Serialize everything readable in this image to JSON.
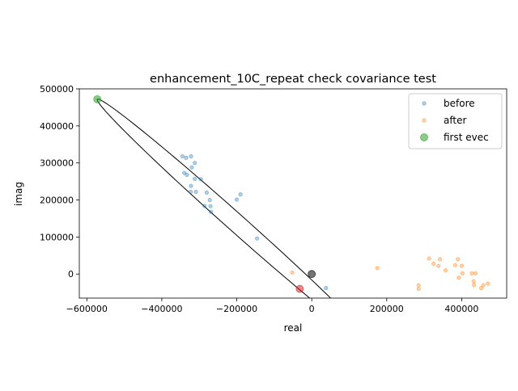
{
  "chart_data": {
    "type": "scatter",
    "title": "enhancement_10C_repeat check covariance test",
    "xlabel": "real",
    "ylabel": "imag",
    "xlim": [
      -620000,
      520000
    ],
    "ylim": [
      -65000,
      500000
    ],
    "xticks": [
      -600000,
      -400000,
      -200000,
      0,
      200000,
      400000
    ],
    "xtick_labels": [
      "−600000",
      "−400000",
      "−200000",
      "0",
      "200000",
      "400000"
    ],
    "yticks": [
      0,
      100000,
      200000,
      300000,
      400000,
      500000
    ],
    "ytick_labels": [
      "0",
      "100000",
      "200000",
      "300000",
      "400000",
      "500000"
    ],
    "grid": false,
    "legend_position": "top-right",
    "series": [
      {
        "name": "before",
        "color": "#1f77b4",
        "points": [
          [
            -345000,
            318000
          ],
          [
            -335000,
            314000
          ],
          [
            -322000,
            318000
          ],
          [
            -312000,
            300000
          ],
          [
            -320000,
            288000
          ],
          [
            -340000,
            273000
          ],
          [
            -333000,
            268000
          ],
          [
            -312000,
            257000
          ],
          [
            -296000,
            256000
          ],
          [
            -322000,
            238000
          ],
          [
            -323000,
            222000
          ],
          [
            -309000,
            222000
          ],
          [
            -280000,
            220000
          ],
          [
            -272000,
            200000
          ],
          [
            -286000,
            184000
          ],
          [
            -270000,
            183000
          ],
          [
            -269000,
            168000
          ],
          [
            -200000,
            201000
          ],
          [
            -190000,
            215000
          ],
          [
            -146000,
            96000
          ],
          [
            38000,
            -38000
          ]
        ]
      },
      {
        "name": "after",
        "color": "#ff7f0e",
        "points": [
          [
            -52000,
            4000
          ],
          [
            175000,
            16000
          ],
          [
            285000,
            -30000
          ],
          [
            285000,
            -40000
          ],
          [
            313000,
            42000
          ],
          [
            325000,
            28000
          ],
          [
            338000,
            22000
          ],
          [
            342000,
            40000
          ],
          [
            357000,
            10000
          ],
          [
            383000,
            24000
          ],
          [
            390000,
            40000
          ],
          [
            392000,
            -10000
          ],
          [
            400000,
            22000
          ],
          [
            402000,
            2000
          ],
          [
            427000,
            2000
          ],
          [
            432000,
            -20000
          ],
          [
            433000,
            -30000
          ],
          [
            437000,
            2000
          ],
          [
            452000,
            -38000
          ],
          [
            458000,
            -30000
          ],
          [
            470000,
            -26000
          ]
        ]
      },
      {
        "name": "first evec",
        "color": "#2ca02c",
        "points": [
          [
            -572000,
            472000
          ]
        ]
      }
    ],
    "extra_points": [
      {
        "color": "#000000",
        "point": [
          0,
          0
        ]
      },
      {
        "color": "#d62728",
        "point": [
          -32000,
          -40000
        ]
      }
    ],
    "ellipse": {
      "center": [
        -207000,
        143000
      ],
      "half_axis_a": [
        -365000,
        329000
      ],
      "half_axis_b": [
        -16000,
        -18000
      ],
      "color": "#000000"
    }
  }
}
